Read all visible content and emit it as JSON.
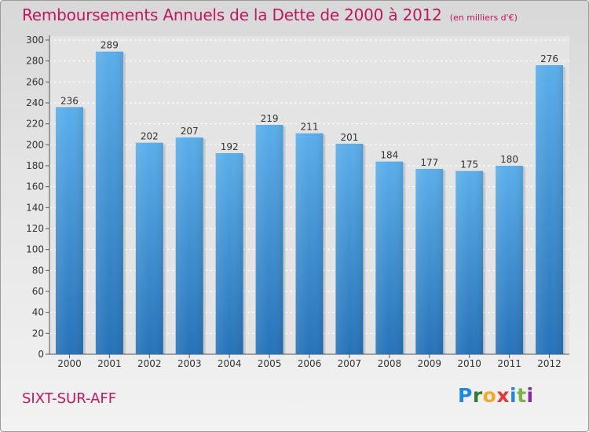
{
  "header": {
    "title": "Remboursements Annuels de la Dette de 2000 à 2012",
    "subtitle": "(en milliers d'€)"
  },
  "footer": {
    "place": "SIXT-SUR-AFF",
    "brand_letters": [
      "P",
      "r",
      "o",
      "x",
      "i",
      "t",
      "i"
    ],
    "brand_colors": [
      "#1e88e5",
      "#2e7d32",
      "#f9a825",
      "#e53935",
      "#1e88e5",
      "#7cb342",
      "#8e24aa"
    ]
  },
  "colors": {
    "title": "#c0175f",
    "bar_light": "#5aaeea",
    "bar_dark": "#2672b8"
  },
  "chart_data": {
    "type": "bar",
    "title": "Remboursements Annuels de la Dette de 2000 à 2012",
    "subtitle": "(en milliers d'€)",
    "categories": [
      "2000",
      "2001",
      "2002",
      "2003",
      "2004",
      "2005",
      "2006",
      "2007",
      "2008",
      "2009",
      "2010",
      "2011",
      "2012"
    ],
    "values": [
      236,
      289,
      202,
      207,
      192,
      219,
      211,
      201,
      184,
      177,
      175,
      180,
      276
    ],
    "ylim": [
      0,
      300
    ],
    "yticks": [
      0,
      20,
      40,
      60,
      80,
      100,
      120,
      140,
      160,
      180,
      200,
      220,
      240,
      260,
      280,
      300
    ],
    "grid": true,
    "legend": "none"
  }
}
